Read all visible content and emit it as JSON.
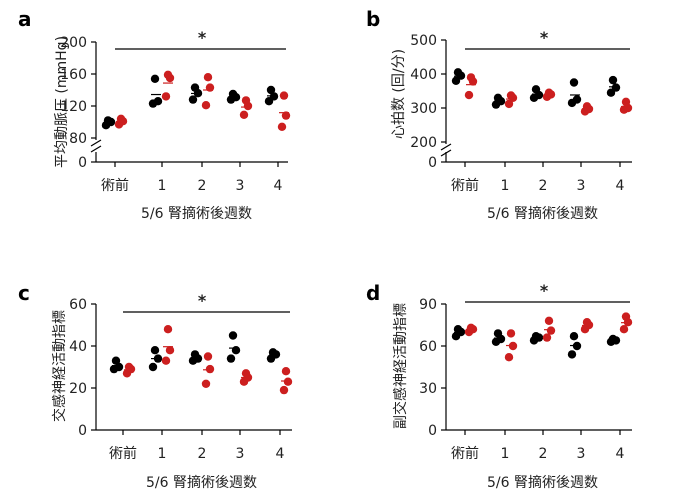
{
  "colors": {
    "control": "#000000",
    "treated": "#cc1f1f"
  },
  "chart_data": [
    {
      "type": "scatter",
      "panel": "a",
      "ylabel": "平均動脈圧 (mmHg)",
      "xlabel": "5/6 腎摘術後週数",
      "categories": [
        "術前",
        "1",
        "2",
        "3",
        "4"
      ],
      "ylim": [
        80,
        200
      ],
      "yticks": [
        80,
        120,
        160,
        200
      ],
      "ybreak_zero": true,
      "significance": "*",
      "series": [
        {
          "color": "control",
          "values": [
            [
              96,
              100,
              102
            ],
            [
              123,
              126,
              154
            ],
            [
              128,
              136,
              143
            ],
            [
              128,
              131,
              135
            ],
            [
              126,
              132,
              140
            ]
          ]
        },
        {
          "color": "treated",
          "values": [
            [
              97,
              101,
              104
            ],
            [
              132,
              155,
              159
            ],
            [
              121,
              143,
              156
            ],
            [
              109,
              120,
              127
            ],
            [
              94,
              108,
              133
            ]
          ]
        }
      ]
    },
    {
      "type": "scatter",
      "panel": "b",
      "ylabel": "心拍数 (回/分)",
      "xlabel": "5/6 腎摘術後週数",
      "categories": [
        "術前",
        "1",
        "2",
        "3",
        "4"
      ],
      "ylim": [
        200,
        500
      ],
      "yticks": [
        200,
        300,
        400,
        500
      ],
      "ybreak_zero": true,
      "significance": "*",
      "series": [
        {
          "color": "control",
          "values": [
            [
              380,
              395,
              405
            ],
            [
              310,
              320,
              330
            ],
            [
              330,
              338,
              355
            ],
            [
              315,
              325,
              375
            ],
            [
              345,
              360,
              382
            ]
          ]
        },
        {
          "color": "treated",
          "values": [
            [
              338,
              378,
              390
            ],
            [
              312,
              330,
              337
            ],
            [
              333,
              340,
              345
            ],
            [
              290,
              297,
              305
            ],
            [
              295,
              300,
              318
            ]
          ]
        }
      ]
    },
    {
      "type": "scatter",
      "panel": "c",
      "ylabel": "交感神経活動指標",
      "xlabel": "5/6 腎摘術後週数",
      "categories": [
        "術前",
        "1",
        "2",
        "3",
        "4"
      ],
      "ylim": [
        0,
        60
      ],
      "yticks": [
        0,
        20,
        40,
        60
      ],
      "ybreak_zero": false,
      "significance": "*",
      "series": [
        {
          "color": "control",
          "values": [
            [
              29,
              30,
              33
            ],
            [
              30,
              34,
              38
            ],
            [
              33,
              34,
              36
            ],
            [
              34,
              38,
              45
            ],
            [
              34,
              36,
              37
            ]
          ]
        },
        {
          "color": "treated",
          "values": [
            [
              27,
              29,
              30
            ],
            [
              33,
              38,
              48
            ],
            [
              22,
              29,
              35
            ],
            [
              23,
              25,
              27
            ],
            [
              19,
              23,
              28
            ]
          ]
        }
      ]
    },
    {
      "type": "scatter",
      "panel": "d",
      "ylabel": "副交感神経活動指標",
      "xlabel": "5/6 腎摘術後週数",
      "categories": [
        "術前",
        "1",
        "2",
        "3",
        "4"
      ],
      "ylim": [
        0,
        90
      ],
      "yticks": [
        0,
        30,
        60,
        90
      ],
      "ybreak_zero": false,
      "significance": "*",
      "series": [
        {
          "color": "control",
          "values": [
            [
              67,
              70,
              72
            ],
            [
              63,
              65,
              69
            ],
            [
              64,
              66,
              67
            ],
            [
              54,
              60,
              67
            ],
            [
              63,
              64,
              65
            ]
          ]
        },
        {
          "color": "treated",
          "values": [
            [
              70,
              72,
              73
            ],
            [
              52,
              60,
              69
            ],
            [
              66,
              71,
              78
            ],
            [
              72,
              75,
              77
            ],
            [
              72,
              77,
              81
            ]
          ]
        }
      ]
    }
  ]
}
